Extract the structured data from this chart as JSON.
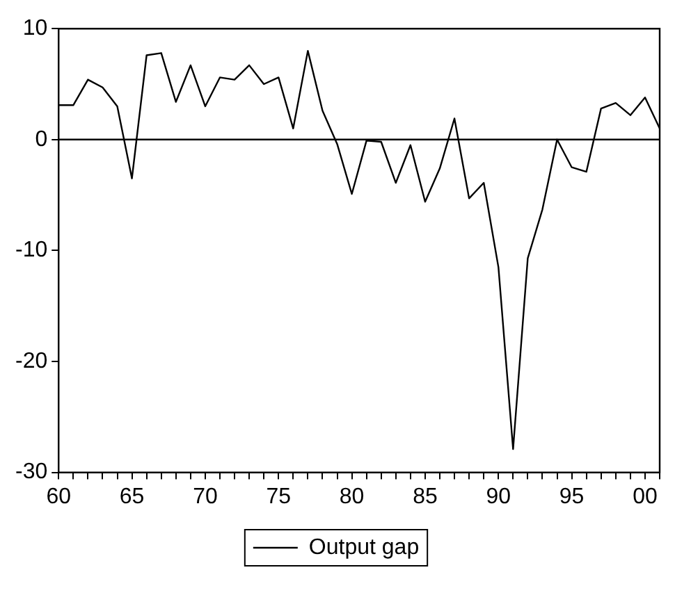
{
  "chart_data": {
    "type": "line",
    "x": [
      1960,
      1961,
      1962,
      1963,
      1964,
      1965,
      1966,
      1967,
      1968,
      1969,
      1970,
      1971,
      1972,
      1973,
      1974,
      1975,
      1976,
      1977,
      1978,
      1979,
      1980,
      1981,
      1982,
      1983,
      1984,
      1985,
      1986,
      1987,
      1988,
      1989,
      1990,
      1991,
      1992,
      1993,
      1994,
      1995,
      1996,
      1997,
      1998,
      1999,
      2000,
      2001
    ],
    "series": [
      {
        "name": "Output gap",
        "color": "#000000",
        "values": [
          3.1,
          3.1,
          5.4,
          4.7,
          3.0,
          -3.5,
          7.6,
          7.8,
          3.4,
          6.7,
          3.0,
          5.6,
          5.4,
          6.7,
          5.0,
          5.6,
          1.0,
          8.0,
          2.6,
          -0.4,
          -4.9,
          -0.1,
          -0.2,
          -3.9,
          -0.5,
          -5.6,
          -2.6,
          1.9,
          -5.3,
          -3.9,
          -11.5,
          -27.9,
          -10.7,
          -6.3,
          0.0,
          -2.5,
          -2.9,
          2.8,
          3.3,
          2.2,
          3.8,
          1.0
        ]
      }
    ],
    "xlim": [
      1960,
      2001
    ],
    "xticks": [
      {
        "value": 1960,
        "label": "60"
      },
      {
        "value": 1961,
        "label": null
      },
      {
        "value": 1962,
        "label": null
      },
      {
        "value": 1963,
        "label": null
      },
      {
        "value": 1964,
        "label": null
      },
      {
        "value": 1965,
        "label": "65"
      },
      {
        "value": 1966,
        "label": null
      },
      {
        "value": 1967,
        "label": null
      },
      {
        "value": 1968,
        "label": null
      },
      {
        "value": 1969,
        "label": null
      },
      {
        "value": 1970,
        "label": "70"
      },
      {
        "value": 1971,
        "label": null
      },
      {
        "value": 1972,
        "label": null
      },
      {
        "value": 1973,
        "label": null
      },
      {
        "value": 1974,
        "label": null
      },
      {
        "value": 1975,
        "label": "75"
      },
      {
        "value": 1976,
        "label": null
      },
      {
        "value": 1977,
        "label": null
      },
      {
        "value": 1978,
        "label": null
      },
      {
        "value": 1979,
        "label": null
      },
      {
        "value": 1980,
        "label": "80"
      },
      {
        "value": 1981,
        "label": null
      },
      {
        "value": 1982,
        "label": null
      },
      {
        "value": 1983,
        "label": null
      },
      {
        "value": 1984,
        "label": null
      },
      {
        "value": 1985,
        "label": "85"
      },
      {
        "value": 1986,
        "label": null
      },
      {
        "value": 1987,
        "label": null
      },
      {
        "value": 1988,
        "label": null
      },
      {
        "value": 1989,
        "label": null
      },
      {
        "value": 1990,
        "label": "90"
      },
      {
        "value": 1991,
        "label": null
      },
      {
        "value": 1992,
        "label": null
      },
      {
        "value": 1993,
        "label": null
      },
      {
        "value": 1994,
        "label": null
      },
      {
        "value": 1995,
        "label": "95"
      },
      {
        "value": 1996,
        "label": null
      },
      {
        "value": 1997,
        "label": null
      },
      {
        "value": 1998,
        "label": null
      },
      {
        "value": 1999,
        "label": null
      },
      {
        "value": 2000,
        "label": "00"
      },
      {
        "value": 2001,
        "label": null
      }
    ],
    "ylim": [
      -30,
      10
    ],
    "yticks": [
      -30,
      -20,
      -10,
      0,
      10
    ],
    "ref_lines": [
      {
        "axis": "y",
        "value": 0,
        "color": "#000000"
      }
    ],
    "legend": "bottom",
    "grid": false,
    "marker": "none",
    "line_style": "solid"
  }
}
